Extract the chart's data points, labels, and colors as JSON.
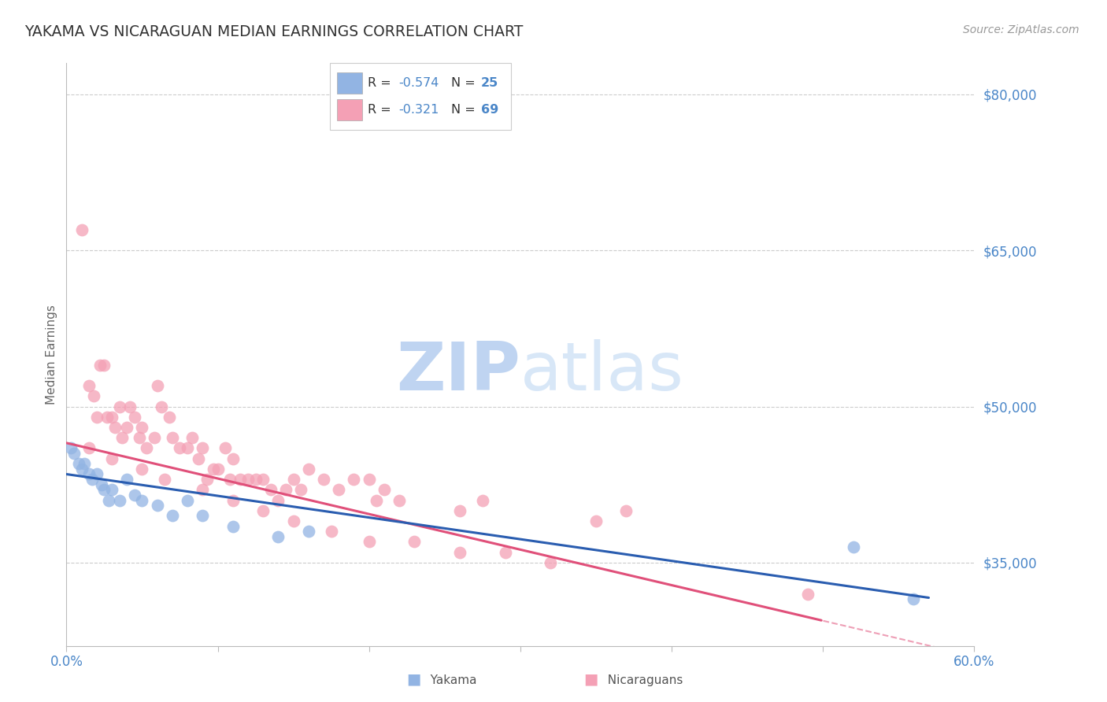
{
  "title": "YAKAMA VS NICARAGUAN MEDIAN EARNINGS CORRELATION CHART",
  "source": "Source: ZipAtlas.com",
  "ylabel": "Median Earnings",
  "xmin": 0.0,
  "xmax": 60.0,
  "ymin": 27000,
  "ymax": 83000,
  "y_ticks": [
    35000,
    50000,
    65000,
    80000
  ],
  "y_tick_labels": [
    "$35,000",
    "$50,000",
    "$65,000",
    "$80,000"
  ],
  "r_yakama": -0.574,
  "n_yakama": 25,
  "r_nicaraguan": -0.321,
  "n_nicaraguan": 69,
  "yakama_color": "#92b4e3",
  "nicaraguan_color": "#f4a0b5",
  "yakama_line_color": "#2a5db0",
  "nicaraguan_line_color": "#e0507a",
  "title_color": "#333333",
  "axis_label_color": "#4a86c8",
  "source_color": "#999999",
  "background_color": "#ffffff",
  "watermark_color": "#ddeeff",
  "yakama_x": [
    0.3,
    0.5,
    0.8,
    1.0,
    1.2,
    1.5,
    1.7,
    2.0,
    2.3,
    2.5,
    2.8,
    3.0,
    3.5,
    4.0,
    4.5,
    5.0,
    6.0,
    7.0,
    8.0,
    9.0,
    11.0,
    14.0,
    16.0,
    52.0,
    56.0
  ],
  "yakama_y": [
    46000,
    45500,
    44500,
    44000,
    44500,
    43500,
    43000,
    43500,
    42500,
    42000,
    41000,
    42000,
    41000,
    43000,
    41500,
    41000,
    40500,
    39500,
    41000,
    39500,
    38500,
    37500,
    38000,
    36500,
    31500
  ],
  "nicaraguan_x": [
    1.0,
    1.5,
    1.8,
    2.0,
    2.2,
    2.5,
    2.7,
    3.0,
    3.2,
    3.5,
    3.7,
    4.0,
    4.2,
    4.5,
    4.8,
    5.0,
    5.3,
    5.8,
    6.0,
    6.3,
    6.8,
    7.0,
    7.5,
    8.0,
    8.3,
    8.7,
    9.0,
    9.3,
    9.7,
    10.0,
    10.5,
    10.8,
    11.0,
    11.5,
    12.0,
    12.5,
    13.0,
    13.5,
    14.0,
    14.5,
    15.0,
    15.5,
    16.0,
    17.0,
    18.0,
    19.0,
    20.0,
    20.5,
    21.0,
    22.0,
    26.0,
    27.5,
    35.0,
    37.0,
    49.0,
    1.5,
    3.0,
    5.0,
    6.5,
    9.0,
    11.0,
    13.0,
    15.0,
    17.5,
    20.0,
    23.0,
    26.0,
    29.0,
    32.0
  ],
  "nicaraguan_y": [
    67000,
    52000,
    51000,
    49000,
    54000,
    54000,
    49000,
    49000,
    48000,
    50000,
    47000,
    48000,
    50000,
    49000,
    47000,
    48000,
    46000,
    47000,
    52000,
    50000,
    49000,
    47000,
    46000,
    46000,
    47000,
    45000,
    46000,
    43000,
    44000,
    44000,
    46000,
    43000,
    45000,
    43000,
    43000,
    43000,
    43000,
    42000,
    41000,
    42000,
    43000,
    42000,
    44000,
    43000,
    42000,
    43000,
    43000,
    41000,
    42000,
    41000,
    40000,
    41000,
    39000,
    40000,
    32000,
    46000,
    45000,
    44000,
    43000,
    42000,
    41000,
    40000,
    39000,
    38000,
    37000,
    37000,
    36000,
    36000,
    35000
  ]
}
